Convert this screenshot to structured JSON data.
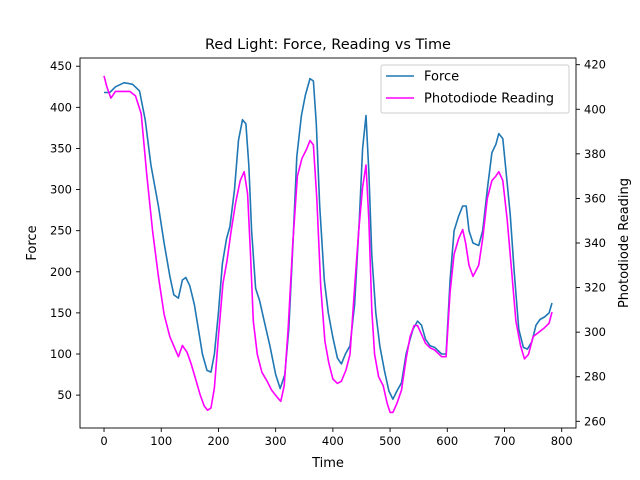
{
  "chart_data": {
    "type": "line",
    "title": "Red Light: Force, Reading vs Time",
    "xlabel": "Time",
    "ylabel_left": "Force",
    "ylabel_right": "Photodiode Reading",
    "xlim": [
      -42,
      825
    ],
    "ylim_left": [
      10,
      460
    ],
    "ylim_right": [
      257,
      423
    ],
    "x_ticks": [
      0,
      100,
      200,
      300,
      400,
      500,
      600,
      700,
      800
    ],
    "y_left_ticks": [
      50,
      100,
      150,
      200,
      250,
      300,
      350,
      400,
      450
    ],
    "y_right_ticks": [
      260,
      280,
      300,
      320,
      340,
      360,
      380,
      400,
      420
    ],
    "grid": false,
    "legend_position": "top-right",
    "series": [
      {
        "name": "Force",
        "color": "#1f77b4",
        "axis": "left",
        "points": [
          [
            0,
            418
          ],
          [
            10,
            418
          ],
          [
            20,
            425
          ],
          [
            35,
            430
          ],
          [
            50,
            428
          ],
          [
            62,
            420
          ],
          [
            72,
            385
          ],
          [
            82,
            330
          ],
          [
            95,
            280
          ],
          [
            105,
            235
          ],
          [
            115,
            195
          ],
          [
            122,
            172
          ],
          [
            130,
            168
          ],
          [
            137,
            190
          ],
          [
            143,
            193
          ],
          [
            150,
            183
          ],
          [
            158,
            160
          ],
          [
            165,
            130
          ],
          [
            172,
            100
          ],
          [
            180,
            80
          ],
          [
            187,
            78
          ],
          [
            193,
            100
          ],
          [
            200,
            150
          ],
          [
            207,
            210
          ],
          [
            214,
            240
          ],
          [
            220,
            255
          ],
          [
            228,
            300
          ],
          [
            235,
            360
          ],
          [
            242,
            385
          ],
          [
            248,
            380
          ],
          [
            253,
            330
          ],
          [
            258,
            250
          ],
          [
            265,
            180
          ],
          [
            272,
            165
          ],
          [
            280,
            140
          ],
          [
            290,
            110
          ],
          [
            300,
            75
          ],
          [
            308,
            58
          ],
          [
            316,
            75
          ],
          [
            323,
            130
          ],
          [
            330,
            230
          ],
          [
            337,
            340
          ],
          [
            345,
            390
          ],
          [
            352,
            415
          ],
          [
            360,
            435
          ],
          [
            366,
            432
          ],
          [
            371,
            380
          ],
          [
            377,
            280
          ],
          [
            385,
            190
          ],
          [
            392,
            150
          ],
          [
            400,
            120
          ],
          [
            408,
            95
          ],
          [
            415,
            88
          ],
          [
            422,
            100
          ],
          [
            430,
            110
          ],
          [
            438,
            160
          ],
          [
            446,
            260
          ],
          [
            452,
            350
          ],
          [
            458,
            390
          ],
          [
            463,
            320
          ],
          [
            468,
            220
          ],
          [
            475,
            150
          ],
          [
            482,
            110
          ],
          [
            490,
            80
          ],
          [
            498,
            55
          ],
          [
            505,
            45
          ],
          [
            512,
            55
          ],
          [
            520,
            65
          ],
          [
            528,
            100
          ],
          [
            535,
            118
          ],
          [
            540,
            130
          ],
          [
            548,
            140
          ],
          [
            555,
            135
          ],
          [
            562,
            118
          ],
          [
            570,
            110
          ],
          [
            578,
            108
          ],
          [
            590,
            100
          ],
          [
            598,
            100
          ],
          [
            605,
            190
          ],
          [
            612,
            250
          ],
          [
            620,
            268
          ],
          [
            627,
            280
          ],
          [
            633,
            280
          ],
          [
            638,
            250
          ],
          [
            645,
            235
          ],
          [
            655,
            232
          ],
          [
            662,
            250
          ],
          [
            670,
            300
          ],
          [
            678,
            345
          ],
          [
            685,
            355
          ],
          [
            690,
            368
          ],
          [
            697,
            362
          ],
          [
            703,
            320
          ],
          [
            710,
            270
          ],
          [
            717,
            200
          ],
          [
            725,
            130
          ],
          [
            733,
            108
          ],
          [
            740,
            106
          ],
          [
            748,
            115
          ],
          [
            755,
            135
          ],
          [
            762,
            142
          ],
          [
            770,
            145
          ],
          [
            778,
            150
          ],
          [
            783,
            162
          ]
        ]
      },
      {
        "name": "Photodiode Reading",
        "color": "#ff00ff",
        "axis": "right",
        "points": [
          [
            0,
            415
          ],
          [
            5,
            410
          ],
          [
            12,
            405
          ],
          [
            20,
            408
          ],
          [
            30,
            408
          ],
          [
            45,
            408
          ],
          [
            55,
            406
          ],
          [
            65,
            398
          ],
          [
            75,
            370
          ],
          [
            85,
            345
          ],
          [
            95,
            325
          ],
          [
            105,
            308
          ],
          [
            115,
            298
          ],
          [
            125,
            292
          ],
          [
            130,
            289
          ],
          [
            137,
            294
          ],
          [
            145,
            291
          ],
          [
            152,
            286
          ],
          [
            160,
            279
          ],
          [
            168,
            272
          ],
          [
            175,
            267
          ],
          [
            181,
            265
          ],
          [
            187,
            266
          ],
          [
            193,
            275
          ],
          [
            200,
            298
          ],
          [
            208,
            322
          ],
          [
            215,
            332
          ],
          [
            222,
            345
          ],
          [
            230,
            358
          ],
          [
            238,
            368
          ],
          [
            245,
            372
          ],
          [
            251,
            362
          ],
          [
            256,
            335
          ],
          [
            261,
            305
          ],
          [
            268,
            290
          ],
          [
            276,
            282
          ],
          [
            285,
            278
          ],
          [
            293,
            274
          ],
          [
            302,
            271
          ],
          [
            309,
            269
          ],
          [
            315,
            276
          ],
          [
            322,
            302
          ],
          [
            330,
            340
          ],
          [
            338,
            370
          ],
          [
            346,
            378
          ],
          [
            354,
            382
          ],
          [
            360,
            386
          ],
          [
            366,
            384
          ],
          [
            372,
            360
          ],
          [
            379,
            320
          ],
          [
            386,
            296
          ],
          [
            393,
            286
          ],
          [
            400,
            279
          ],
          [
            408,
            277
          ],
          [
            415,
            278
          ],
          [
            423,
            283
          ],
          [
            430,
            290
          ],
          [
            438,
            320
          ],
          [
            445,
            345
          ],
          [
            452,
            365
          ],
          [
            458,
            375
          ],
          [
            463,
            350
          ],
          [
            468,
            310
          ],
          [
            473,
            290
          ],
          [
            480,
            280
          ],
          [
            488,
            276
          ],
          [
            495,
            268
          ],
          [
            500,
            264
          ],
          [
            505,
            264
          ],
          [
            512,
            268
          ],
          [
            520,
            274
          ],
          [
            528,
            288
          ],
          [
            535,
            298
          ],
          [
            542,
            303
          ],
          [
            548,
            303
          ],
          [
            555,
            299
          ],
          [
            562,
            295
          ],
          [
            570,
            293
          ],
          [
            578,
            292
          ],
          [
            590,
            289
          ],
          [
            598,
            289
          ],
          [
            605,
            318
          ],
          [
            612,
            335
          ],
          [
            620,
            342
          ],
          [
            627,
            346
          ],
          [
            632,
            340
          ],
          [
            638,
            330
          ],
          [
            645,
            325
          ],
          [
            655,
            330
          ],
          [
            662,
            342
          ],
          [
            670,
            360
          ],
          [
            678,
            368
          ],
          [
            685,
            370
          ],
          [
            690,
            372
          ],
          [
            697,
            368
          ],
          [
            705,
            350
          ],
          [
            713,
            326
          ],
          [
            720,
            305
          ],
          [
            728,
            294
          ],
          [
            735,
            288
          ],
          [
            742,
            290
          ],
          [
            750,
            298
          ],
          [
            760,
            300
          ],
          [
            770,
            302
          ],
          [
            778,
            304
          ],
          [
            783,
            309
          ]
        ]
      }
    ]
  }
}
